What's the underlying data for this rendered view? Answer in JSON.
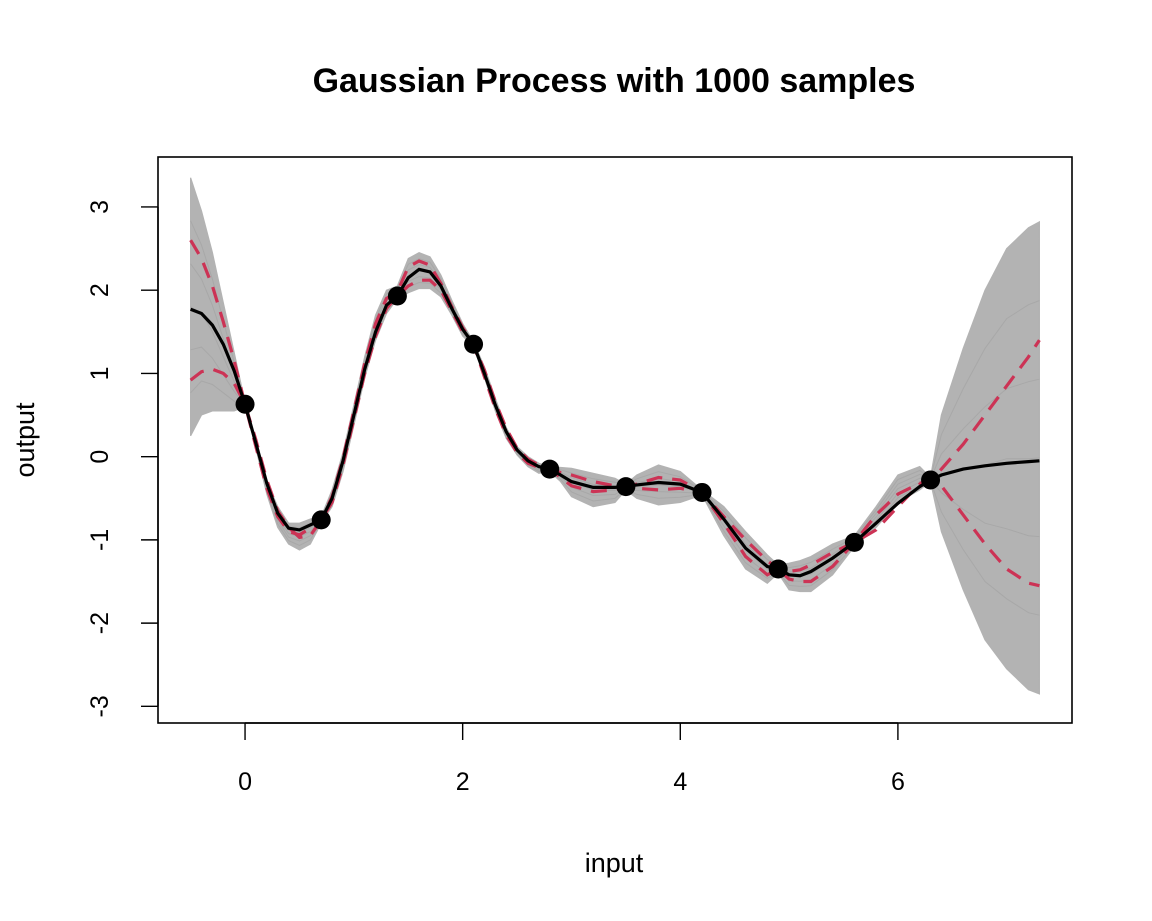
{
  "chart_data": {
    "type": "line",
    "title": "Gaussian Process with 1000 samples",
    "xlabel": "input",
    "ylabel": "output",
    "xlim": [
      -0.6,
      7.8
    ],
    "ylim": [
      -3.1,
      3.6
    ],
    "x_ticks": [
      0,
      2,
      4,
      6
    ],
    "x_tick_labels": [
      "0",
      "2",
      "4",
      "6"
    ],
    "y_ticks": [
      -3,
      -2,
      -1,
      0,
      1,
      2,
      3
    ],
    "y_tick_labels": [
      "-3",
      "-2",
      "-1",
      "0",
      "1",
      "2",
      "3"
    ],
    "grid": false,
    "legend": "none",
    "observations": {
      "x": [
        0,
        0.7,
        1.4,
        2.1,
        2.8,
        3.5,
        4.2,
        4.9,
        5.6,
        6.3
      ],
      "y": [
        0.63,
        -0.76,
        1.93,
        1.35,
        -0.15,
        -0.36,
        -0.43,
        -1.35,
        -1.03,
        -0.28
      ]
    },
    "series": [
      {
        "role": "posterior-mean",
        "color": "#000000",
        "style": "solid",
        "x": [
          -0.5,
          -0.4,
          -0.3,
          -0.2,
          -0.1,
          0.0,
          0.1,
          0.2,
          0.3,
          0.4,
          0.5,
          0.6,
          0.7,
          0.8,
          0.9,
          1.0,
          1.1,
          1.2,
          1.3,
          1.4,
          1.5,
          1.6,
          1.7,
          1.8,
          1.9,
          2.0,
          2.1,
          2.2,
          2.3,
          2.4,
          2.5,
          2.6,
          2.7,
          2.8,
          2.9,
          3.0,
          3.2,
          3.4,
          3.5,
          3.6,
          3.8,
          4.0,
          4.2,
          4.4,
          4.6,
          4.8,
          4.9,
          5.0,
          5.1,
          5.2,
          5.4,
          5.6,
          5.8,
          6.0,
          6.2,
          6.3,
          6.4,
          6.6,
          6.8,
          7.0,
          7.2,
          7.3
        ],
        "y": [
          1.77,
          1.72,
          1.58,
          1.35,
          1.03,
          0.63,
          0.16,
          -0.32,
          -0.68,
          -0.86,
          -0.88,
          -0.82,
          -0.76,
          -0.5,
          -0.05,
          0.5,
          1.05,
          1.5,
          1.82,
          1.93,
          2.15,
          2.25,
          2.22,
          2.05,
          1.78,
          1.53,
          1.35,
          1.0,
          0.62,
          0.3,
          0.08,
          -0.05,
          -0.12,
          -0.15,
          -0.22,
          -0.3,
          -0.37,
          -0.37,
          -0.36,
          -0.34,
          -0.31,
          -0.33,
          -0.43,
          -0.75,
          -1.1,
          -1.32,
          -1.35,
          -1.42,
          -1.43,
          -1.38,
          -1.22,
          -1.03,
          -0.8,
          -0.56,
          -0.36,
          -0.28,
          -0.22,
          -0.15,
          -0.11,
          -0.08,
          -0.06,
          -0.05
        ]
      },
      {
        "role": "credible-bound-upper",
        "color": "#cc3355",
        "style": "dashed",
        "x": [
          -0.5,
          -0.4,
          -0.3,
          -0.2,
          -0.1,
          0.0,
          0.1,
          0.2,
          0.3,
          0.4,
          0.5,
          0.6,
          0.7,
          0.8,
          0.9,
          1.0,
          1.1,
          1.2,
          1.3,
          1.4,
          1.5,
          1.6,
          1.7,
          1.8,
          1.9,
          2.0,
          2.1,
          2.2,
          2.3,
          2.4,
          2.5,
          2.6,
          2.7,
          2.8,
          2.9,
          3.0,
          3.2,
          3.4,
          3.5,
          3.6,
          3.8,
          4.0,
          4.2,
          4.4,
          4.6,
          4.8,
          4.9,
          5.0,
          5.1,
          5.2,
          5.4,
          5.6,
          5.8,
          6.0,
          6.2,
          6.3,
          6.4,
          6.6,
          6.8,
          7.0,
          7.2,
          7.3
        ],
        "y": [
          2.6,
          2.38,
          2.05,
          1.62,
          1.15,
          0.63,
          0.12,
          -0.38,
          -0.72,
          -0.9,
          -0.94,
          -0.86,
          -0.76,
          -0.48,
          -0.02,
          0.55,
          1.12,
          1.6,
          1.9,
          1.98,
          2.28,
          2.35,
          2.3,
          2.08,
          1.8,
          1.55,
          1.35,
          0.96,
          0.58,
          0.26,
          0.05,
          -0.08,
          -0.13,
          -0.15,
          -0.19,
          -0.22,
          -0.3,
          -0.35,
          -0.36,
          -0.33,
          -0.25,
          -0.28,
          -0.43,
          -0.72,
          -1.0,
          -1.25,
          -1.35,
          -1.38,
          -1.36,
          -1.3,
          -1.15,
          -1.03,
          -0.88,
          -0.6,
          -0.33,
          -0.28,
          -0.15,
          0.15,
          0.5,
          0.85,
          1.2,
          1.4
        ]
      },
      {
        "role": "credible-bound-lower",
        "color": "#cc3355",
        "style": "dashed",
        "x": [
          -0.5,
          -0.4,
          -0.3,
          -0.2,
          -0.1,
          0.0,
          0.1,
          0.2,
          0.3,
          0.4,
          0.5,
          0.6,
          0.7,
          0.8,
          0.9,
          1.0,
          1.1,
          1.2,
          1.3,
          1.4,
          1.5,
          1.6,
          1.7,
          1.8,
          1.9,
          2.0,
          2.1,
          2.2,
          2.3,
          2.4,
          2.5,
          2.6,
          2.7,
          2.8,
          2.9,
          3.0,
          3.2,
          3.4,
          3.5,
          3.6,
          3.8,
          4.0,
          4.2,
          4.4,
          4.6,
          4.8,
          4.9,
          5.0,
          5.1,
          5.2,
          5.4,
          5.6,
          5.8,
          6.0,
          6.2,
          6.3,
          6.4,
          6.6,
          6.8,
          7.0,
          7.2,
          7.3
        ],
        "y": [
          0.92,
          1.02,
          1.05,
          1.0,
          0.88,
          0.63,
          0.2,
          -0.28,
          -0.65,
          -0.85,
          -0.97,
          -0.95,
          -0.76,
          -0.55,
          -0.1,
          0.45,
          1.0,
          1.45,
          1.78,
          1.93,
          2.05,
          2.12,
          2.12,
          2.0,
          1.75,
          1.5,
          1.35,
          1.04,
          0.66,
          0.34,
          0.1,
          -0.03,
          -0.1,
          -0.15,
          -0.25,
          -0.35,
          -0.42,
          -0.4,
          -0.36,
          -0.38,
          -0.4,
          -0.38,
          -0.43,
          -0.8,
          -1.2,
          -1.42,
          -1.35,
          -1.47,
          -1.5,
          -1.5,
          -1.32,
          -1.03,
          -0.7,
          -0.45,
          -0.32,
          -0.28,
          -0.35,
          -0.7,
          -1.05,
          -1.35,
          -1.52,
          -1.55
        ]
      }
    ],
    "sample_envelope": {
      "color": "#b3b3b3",
      "x": [
        -0.5,
        -0.4,
        -0.3,
        -0.2,
        -0.1,
        0.0,
        0.1,
        0.2,
        0.3,
        0.4,
        0.5,
        0.6,
        0.7,
        0.8,
        0.9,
        1.0,
        1.1,
        1.2,
        1.3,
        1.4,
        1.5,
        1.6,
        1.7,
        1.8,
        1.9,
        2.0,
        2.1,
        2.2,
        2.3,
        2.4,
        2.5,
        2.6,
        2.7,
        2.8,
        2.9,
        3.0,
        3.2,
        3.4,
        3.5,
        3.6,
        3.8,
        4.0,
        4.2,
        4.4,
        4.6,
        4.8,
        4.9,
        5.0,
        5.1,
        5.2,
        5.4,
        5.6,
        5.8,
        6.0,
        6.2,
        6.3,
        6.4,
        6.6,
        6.8,
        7.0,
        7.2,
        7.3
      ],
      "upper": [
        3.35,
        2.95,
        2.45,
        1.85,
        1.25,
        0.65,
        0.15,
        -0.3,
        -0.6,
        -0.8,
        -0.8,
        -0.75,
        -0.72,
        -0.4,
        0.05,
        0.62,
        1.2,
        1.7,
        2.0,
        2.05,
        2.38,
        2.45,
        2.4,
        2.18,
        1.88,
        1.6,
        1.38,
        1.08,
        0.7,
        0.35,
        0.12,
        0.0,
        -0.08,
        -0.12,
        -0.13,
        -0.14,
        -0.2,
        -0.26,
        -0.33,
        -0.22,
        -0.1,
        -0.18,
        -0.4,
        -0.6,
        -0.9,
        -1.18,
        -1.3,
        -1.28,
        -1.25,
        -1.2,
        -1.05,
        -0.95,
        -0.6,
        -0.22,
        -0.12,
        -0.25,
        0.5,
        1.3,
        2.0,
        2.5,
        2.75,
        2.82
      ],
      "lower": [
        0.25,
        0.5,
        0.55,
        0.55,
        0.55,
        0.6,
        0.1,
        -0.45,
        -0.85,
        -1.05,
        -1.12,
        -1.05,
        -0.8,
        -0.6,
        -0.18,
        0.38,
        0.95,
        1.4,
        1.72,
        1.9,
        1.97,
        2.02,
        2.02,
        1.92,
        1.7,
        1.45,
        1.32,
        0.95,
        0.55,
        0.22,
        0.02,
        -0.12,
        -0.2,
        -0.18,
        -0.3,
        -0.48,
        -0.6,
        -0.55,
        -0.4,
        -0.5,
        -0.58,
        -0.55,
        -0.46,
        -0.95,
        -1.35,
        -1.52,
        -1.4,
        -1.6,
        -1.62,
        -1.62,
        -1.42,
        -1.08,
        -0.85,
        -0.55,
        -0.4,
        -0.3,
        -0.9,
        -1.6,
        -2.2,
        -2.55,
        -2.8,
        -2.85
      ]
    }
  }
}
